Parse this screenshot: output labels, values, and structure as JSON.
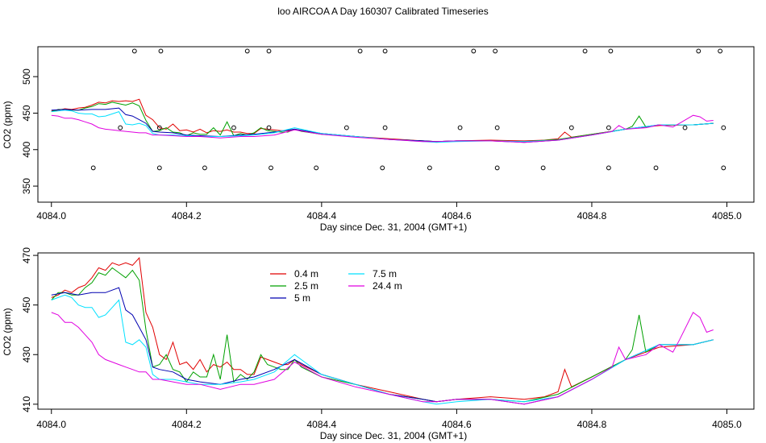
{
  "title": "loo AIRCOA A  Day 160307  Calibrated Timeseries",
  "colors": {
    "0.4 m": "#e00000",
    "2.5 m": "#00a000",
    "5 m": "#0000b0",
    "7.5 m": "#00e0ff",
    "24.4 m": "#e000e0",
    "markers": "#000000"
  },
  "chart_data": [
    {
      "type": "line",
      "xlabel": "Day since Dec. 31, 2004 (GMT+1)",
      "ylabel": "CO2 (ppm)",
      "xlim": [
        4083.98,
        4085.04
      ],
      "ylim": [
        328,
        541
      ],
      "xticks": [
        "4084.0",
        "4084.2",
        "4084.4",
        "4084.6",
        "4084.8",
        "4085.0"
      ],
      "yticks": [
        "350",
        "400",
        "450",
        "500"
      ],
      "markers": {
        "top": {
          "y": 535,
          "x": [
            4084.123,
            4084.162,
            4084.29,
            4084.322,
            4084.457,
            4084.494,
            4084.625,
            4084.657,
            4084.79,
            4084.828,
            4084.958,
            4084.99
          ]
        },
        "middle": {
          "y": 430,
          "x": [
            4084.102,
            4084.16,
            4084.27,
            4084.322,
            4084.437,
            4084.494,
            4084.605,
            4084.66,
            4084.77,
            4084.825,
            4084.938,
            4084.995
          ]
        },
        "bottom": {
          "y": 375,
          "x": [
            4084.062,
            4084.16,
            4084.227,
            4084.325,
            4084.392,
            4084.49,
            4084.56,
            4084.66,
            4084.728,
            4084.825,
            4084.895,
            4084.995
          ]
        }
      }
    },
    {
      "type": "line",
      "xlabel": "Day since Dec. 31, 2004 (GMT+1)",
      "ylabel": "CO2 (ppm)",
      "xlim": [
        4083.98,
        4085.04
      ],
      "ylim": [
        408,
        471
      ],
      "xticks": [
        "4084.0",
        "4084.2",
        "4084.4",
        "4084.6",
        "4084.8",
        "4085.0"
      ],
      "yticks": [
        "410",
        "430",
        "450",
        "470"
      ],
      "legend": {
        "placement": "top-center",
        "labels": [
          "0.4 m",
          "2.5 m",
          "5 m",
          "7.5 m",
          "24.4 m"
        ]
      },
      "series": [
        {
          "name": "0.4 m",
          "x": [
            4084.0,
            4084.01,
            4084.02,
            4084.03,
            4084.04,
            4084.05,
            4084.06,
            4084.07,
            4084.08,
            4084.09,
            4084.1,
            4084.11,
            4084.12,
            4084.13,
            4084.14,
            4084.15,
            4084.16,
            4084.17,
            4084.18,
            4084.19,
            4084.2,
            4084.21,
            4084.22,
            4084.23,
            4084.24,
            4084.25,
            4084.26,
            4084.27,
            4084.28,
            4084.29,
            4084.3,
            4084.31,
            4084.32,
            4084.33,
            4084.34,
            4084.35,
            4084.36,
            4084.37,
            4084.4,
            4084.45,
            4084.5,
            4084.55,
            4084.57,
            4084.6,
            4084.65,
            4084.7,
            4084.73,
            4084.75,
            4084.76,
            4084.77,
            4084.8,
            4084.85,
            4084.9,
            4084.95,
            4084.98
          ],
          "y": [
            453,
            454,
            456,
            455,
            457,
            458,
            461,
            465,
            464,
            467,
            466,
            467,
            466,
            469,
            447,
            441,
            430,
            428,
            435,
            426,
            427,
            424,
            428,
            423,
            426,
            425,
            427,
            424,
            424,
            422,
            422,
            429,
            428,
            427,
            426,
            426,
            428,
            426,
            422,
            418,
            415,
            412,
            411,
            412,
            413,
            412,
            413,
            415,
            424,
            417,
            421,
            428,
            433,
            434,
            436
          ]
        },
        {
          "name": "2.5 m",
          "x": [
            4084.0,
            4084.01,
            4084.02,
            4084.03,
            4084.04,
            4084.05,
            4084.06,
            4084.07,
            4084.08,
            4084.09,
            4084.1,
            4084.11,
            4084.12,
            4084.13,
            4084.14,
            4084.15,
            4084.16,
            4084.17,
            4084.18,
            4084.19,
            4084.2,
            4084.21,
            4084.22,
            4084.23,
            4084.24,
            4084.25,
            4084.26,
            4084.27,
            4084.28,
            4084.29,
            4084.3,
            4084.31,
            4084.32,
            4084.33,
            4084.34,
            4084.35,
            4084.36,
            4084.37,
            4084.4,
            4084.45,
            4084.5,
            4084.55,
            4084.57,
            4084.6,
            4084.65,
            4084.7,
            4084.75,
            4084.8,
            4084.85,
            4084.86,
            4084.87,
            4084.88,
            4084.9,
            4084.95,
            4084.98
          ],
          "y": [
            452,
            455,
            455,
            454,
            454,
            457,
            459,
            463,
            462,
            465,
            463,
            461,
            464,
            460,
            440,
            425,
            426,
            430,
            424,
            423,
            419,
            423,
            421,
            421,
            430,
            420,
            438,
            419,
            422,
            420,
            423,
            430,
            426,
            425,
            424,
            424,
            428,
            425,
            421,
            418,
            414,
            412,
            411,
            412,
            412,
            411,
            414,
            421,
            428,
            432,
            446,
            431,
            434,
            434,
            436
          ]
        },
        {
          "name": "5 m",
          "x": [
            4084.0,
            4084.02,
            4084.04,
            4084.06,
            4084.08,
            4084.09,
            4084.1,
            4084.11,
            4084.12,
            4084.13,
            4084.14,
            4084.15,
            4084.16,
            4084.18,
            4084.2,
            4084.22,
            4084.25,
            4084.28,
            4084.3,
            4084.33,
            4084.36,
            4084.4,
            4084.45,
            4084.5,
            4084.55,
            4084.57,
            4084.6,
            4084.65,
            4084.7,
            4084.75,
            4084.8,
            4084.85,
            4084.9,
            4084.95,
            4084.98
          ],
          "y": [
            454,
            455,
            454,
            455,
            455,
            456,
            457,
            448,
            446,
            441,
            436,
            425,
            424,
            423,
            420,
            419,
            418,
            420,
            421,
            424,
            428,
            422,
            418,
            414,
            412,
            411,
            412,
            412,
            410,
            413,
            420,
            428,
            434,
            434,
            436
          ]
        },
        {
          "name": "7.5 m",
          "x": [
            4084.0,
            4084.01,
            4084.02,
            4084.03,
            4084.04,
            4084.05,
            4084.06,
            4084.07,
            4084.08,
            4084.09,
            4084.1,
            4084.11,
            4084.12,
            4084.13,
            4084.14,
            4084.15,
            4084.16,
            4084.18,
            4084.2,
            4084.22,
            4084.25,
            4084.28,
            4084.3,
            4084.33,
            4084.36,
            4084.4,
            4084.45,
            4084.5,
            4084.55,
            4084.57,
            4084.6,
            4084.65,
            4084.7,
            4084.75,
            4084.8,
            4084.85,
            4084.9,
            4084.95,
            4084.98
          ],
          "y": [
            452,
            453,
            454,
            453,
            450,
            449,
            449,
            445,
            446,
            449,
            452,
            435,
            434,
            436,
            433,
            422,
            420,
            420,
            419,
            418,
            418,
            419,
            420,
            423,
            430,
            422,
            418,
            414,
            411,
            410,
            411,
            412,
            411,
            413,
            420,
            428,
            434,
            434,
            436
          ]
        },
        {
          "name": "24.4 m",
          "x": [
            4084.0,
            4084.01,
            4084.02,
            4084.03,
            4084.04,
            4084.05,
            4084.06,
            4084.07,
            4084.08,
            4084.09,
            4084.1,
            4084.11,
            4084.12,
            4084.13,
            4084.14,
            4084.15,
            4084.16,
            4084.18,
            4084.2,
            4084.22,
            4084.25,
            4084.28,
            4084.3,
            4084.33,
            4084.36,
            4084.4,
            4084.45,
            4084.5,
            4084.55,
            4084.57,
            4084.6,
            4084.65,
            4084.7,
            4084.75,
            4084.8,
            4084.83,
            4084.84,
            4084.85,
            4084.88,
            4084.9,
            4084.92,
            4084.93,
            4084.95,
            4084.96,
            4084.97,
            4084.98
          ],
          "y": [
            447,
            446,
            443,
            443,
            441,
            438,
            435,
            430,
            428,
            427,
            426,
            425,
            424,
            423,
            423,
            420,
            420,
            419,
            418,
            418,
            416,
            418,
            418,
            420,
            427,
            421,
            417,
            414,
            411,
            411,
            412,
            412,
            410,
            413,
            420,
            425,
            433,
            428,
            430,
            434,
            431,
            436,
            447,
            445,
            439,
            440
          ]
        }
      ]
    }
  ]
}
